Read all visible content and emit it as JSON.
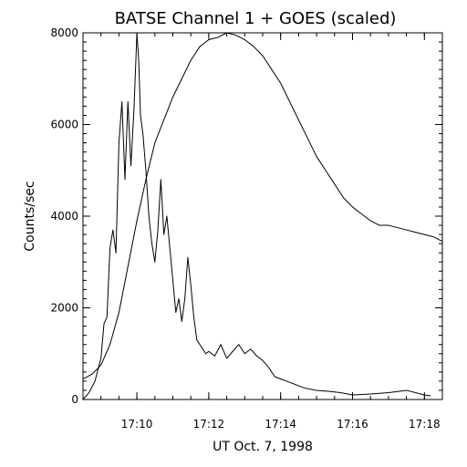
{
  "chart_data": {
    "type": "line",
    "title": "BATSE Channel 1 + GOES (scaled)",
    "xlabel": "UT Oct. 7, 1998",
    "ylabel": "Counts/sec",
    "x_unit": "UT time (hh:mm)",
    "xlim": [
      "17:08:30",
      "17:18:30"
    ],
    "ylim": [
      0,
      8000
    ],
    "x_ticks": [
      "17:10",
      "17:12",
      "17:14",
      "17:16",
      "17:18"
    ],
    "y_ticks": [
      "0",
      "2000",
      "4000",
      "6000",
      "8000"
    ],
    "grid": false,
    "legend": "none",
    "colors": {
      "background": "#ffffff",
      "axes": "#000000",
      "line": "#000000",
      "text": "#000000"
    },
    "series": [
      {
        "x": [
          "17:08:30",
          "17:08:40",
          "17:08:50",
          "17:09:00",
          "17:09:05",
          "17:09:10",
          "17:09:15",
          "17:09:20",
          "17:09:25",
          "17:09:30",
          "17:09:35",
          "17:09:40",
          "17:09:45",
          "17:09:50",
          "17:09:55",
          "17:10:00",
          "17:10:03",
          "17:10:06",
          "17:10:10",
          "17:10:15",
          "17:10:20",
          "17:10:25",
          "17:10:30",
          "17:10:35",
          "17:10:40",
          "17:10:45",
          "17:10:50",
          "17:10:55",
          "17:11:00",
          "17:11:05",
          "17:11:10",
          "17:11:15",
          "17:11:20",
          "17:11:25",
          "17:11:30",
          "17:11:35",
          "17:11:40",
          "17:11:45",
          "17:11:50",
          "17:11:55",
          "17:12:00",
          "17:12:10",
          "17:12:20",
          "17:12:30",
          "17:12:40",
          "17:12:50",
          "17:13:00",
          "17:13:10",
          "17:13:20",
          "17:13:30",
          "17:13:40",
          "17:13:50",
          "17:14:00",
          "17:14:20",
          "17:14:40",
          "17:15:00",
          "17:15:20",
          "17:15:40",
          "17:16:00",
          "17:16:30",
          "17:17:00",
          "17:17:30",
          "17:18:00",
          "17:18:10"
        ],
        "values": [
          0,
          150,
          400,
          900,
          1650,
          1800,
          3300,
          3700,
          3200,
          5600,
          6500,
          4800,
          6500,
          5100,
          6300,
          8000,
          7400,
          6200,
          5800,
          5000,
          4000,
          3400,
          3000,
          3700,
          4800,
          3600,
          4000,
          3300,
          2600,
          1900,
          2200,
          1700,
          2200,
          3100,
          2500,
          1800,
          1300,
          1200,
          1100,
          1000,
          1050,
          950,
          1200,
          900,
          1050,
          1200,
          1000,
          1100,
          950,
          850,
          700,
          500,
          450,
          350,
          250,
          200,
          180,
          150,
          100,
          120,
          150,
          200,
          100,
          80
        ]
      },
      {
        "x": [
          "17:08:30",
          "17:08:45",
          "17:09:00",
          "17:09:15",
          "17:09:30",
          "17:09:45",
          "17:10:00",
          "17:10:15",
          "17:10:30",
          "17:10:45",
          "17:11:00",
          "17:11:15",
          "17:11:30",
          "17:11:45",
          "17:12:00",
          "17:12:15",
          "17:12:30",
          "17:12:45",
          "17:13:00",
          "17:13:15",
          "17:13:30",
          "17:13:45",
          "17:14:00",
          "17:14:15",
          "17:14:30",
          "17:14:45",
          "17:15:00",
          "17:15:15",
          "17:15:30",
          "17:15:45",
          "17:16:00",
          "17:16:15",
          "17:16:30",
          "17:16:45",
          "17:17:00",
          "17:17:15",
          "17:17:30",
          "17:17:45",
          "17:18:00",
          "17:18:15",
          "17:18:30"
        ],
        "values": [
          450,
          550,
          750,
          1200,
          1900,
          2900,
          3900,
          4800,
          5600,
          6100,
          6600,
          7000,
          7400,
          7700,
          7850,
          7900,
          8000,
          7950,
          7850,
          7700,
          7500,
          7200,
          6900,
          6500,
          6100,
          5700,
          5300,
          5000,
          4700,
          4400,
          4200,
          4050,
          3900,
          3800,
          3800,
          3750,
          3700,
          3650,
          3600,
          3550,
          3450
        ]
      }
    ]
  }
}
